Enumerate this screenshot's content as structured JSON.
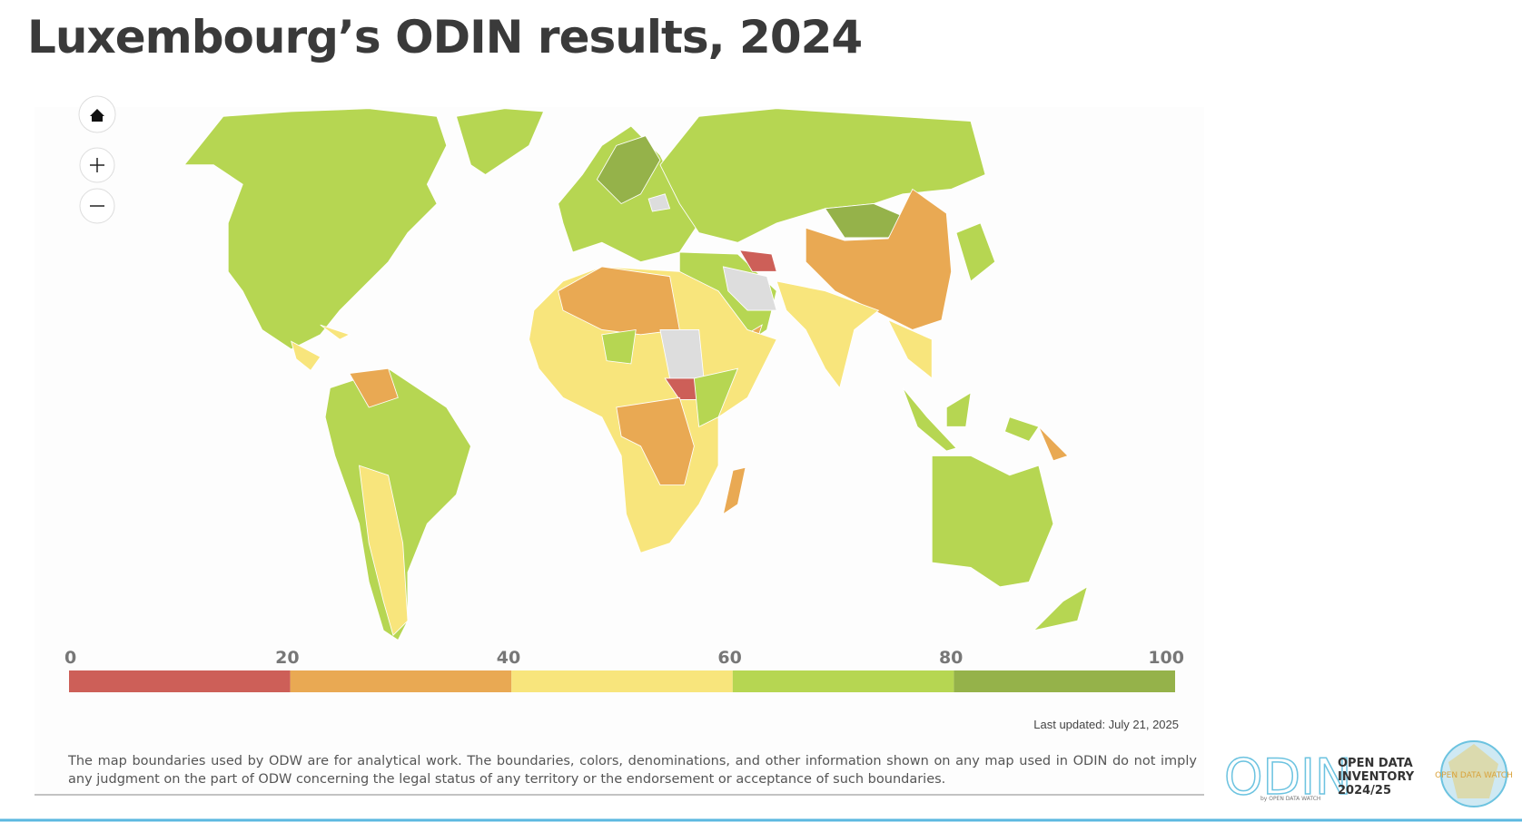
{
  "header": {
    "title": "Luxembourg’s ODIN results, 2024"
  },
  "legend": {
    "ticks": [
      0,
      20,
      40,
      60,
      80,
      100
    ],
    "colors": [
      "#cd5f58",
      "#e9a953",
      "#f8e57c",
      "#b6d652",
      "#95b24a"
    ]
  },
  "last_updated": "Last updated: July 21, 2025",
  "disclaimer": "The map boundaries used by ODW are for analytical work. The boundaries, colors, denominations, and other information shown on any map used in ODIN do not imply any judgment on the part of ODW concerning the legal status of any territory or the endorsement or acceptance of such boundaries.",
  "logo": {
    "name": "ODIN",
    "lines": [
      "OPEN DATA",
      "INVENTORY",
      "2024/25"
    ],
    "byline": "by OPEN DATA WATCH",
    "badge": "OPEN DATA WATCH"
  }
}
